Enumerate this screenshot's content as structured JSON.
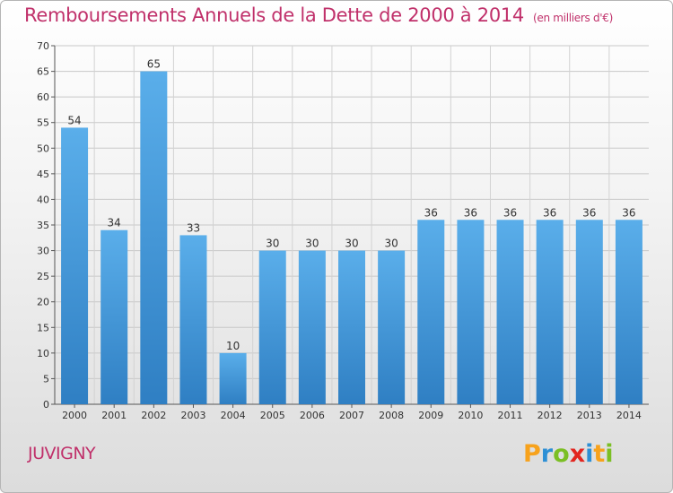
{
  "header": {
    "title": "Remboursements Annuels de la Dette de 2000 à 2014",
    "unit": "(en milliers d'€)"
  },
  "footer": {
    "commune": "JUVIGNY",
    "logo": [
      "P",
      "r",
      "o",
      "x",
      "i",
      "t",
      "i"
    ]
  },
  "colors": {
    "title": "#c0306a",
    "bar_top": "#5aaeea",
    "bar_bottom": "#2f7fc3",
    "logo": [
      "#f7a21c",
      "#2d8fd5",
      "#7bbf24",
      "#e2251f",
      "#2d8fd5",
      "#f7a21c",
      "#7bbf24"
    ]
  },
  "chart_data": {
    "type": "bar",
    "title": "Remboursements Annuels de la Dette de 2000 à 2014",
    "categories": [
      "2000",
      "2001",
      "2002",
      "2003",
      "2004",
      "2005",
      "2006",
      "2007",
      "2008",
      "2009",
      "2010",
      "2011",
      "2012",
      "2013",
      "2014"
    ],
    "values": [
      54,
      34,
      65,
      33,
      10,
      30,
      30,
      30,
      30,
      36,
      36,
      36,
      36,
      36,
      36
    ],
    "ylim": [
      0,
      70
    ],
    "yticks": [
      0,
      5,
      10,
      15,
      20,
      25,
      30,
      35,
      40,
      45,
      50,
      55,
      60,
      65,
      70
    ],
    "grid": true,
    "data_labels": true
  }
}
